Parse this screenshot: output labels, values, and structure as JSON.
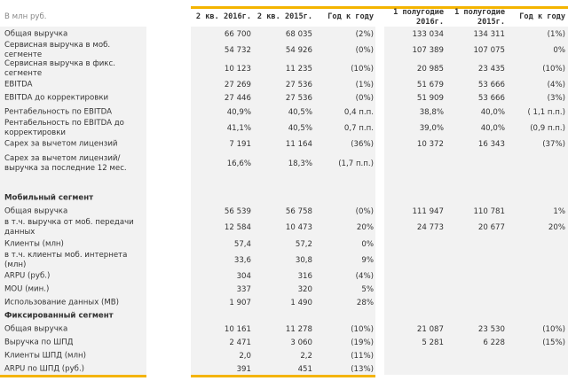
{
  "header": {
    "unit": "В млн руб.",
    "columns": [
      "2 кв. 2016г.",
      "2 кв. 2015г.",
      "Год к году",
      "1 полугодие 2016г.",
      "1 полугодие 2015г.",
      "Год к году"
    ]
  },
  "rows": [
    {
      "label": "Общая выручка",
      "values": [
        "66 700",
        "68 035",
        "(2%)",
        "133 034",
        "134 311",
        "(1%)"
      ]
    },
    {
      "label": "Сервисная выручка в моб. сегменте",
      "values": [
        "54 732",
        "54 926",
        "(0%)",
        "107 389",
        "107 075",
        "0%"
      ]
    },
    {
      "label": "Сервисная выручка в фикс. сегменте",
      "values": [
        "10 123",
        "11 235",
        "(10%)",
        "20 985",
        "23 435",
        "(10%)"
      ]
    },
    {
      "label": "EBITDA",
      "values": [
        "27 269",
        "27 536",
        "(1%)",
        "51 679",
        "53 666",
        "(4%)"
      ]
    },
    {
      "label": "EBITDA до корректировки",
      "values": [
        "27 446",
        "27 536",
        "(0%)",
        "51 909",
        "53 666",
        "(3%)"
      ]
    },
    {
      "label": "Рентабельность по EBITDA",
      "values": [
        "40,9%",
        "40,5%",
        "0,4 п.п.",
        "38,8%",
        "40,0%",
        "( 1,1 п.п.)"
      ]
    },
    {
      "label": "Рентабельность по EBITDA до корректировки",
      "values": [
        "41,1%",
        "40,5%",
        "0,7 п.п.",
        "39,0%",
        "40,0%",
        "(0,9 п.п.)"
      ]
    },
    {
      "label": "Capex за вычетом лицензий",
      "values": [
        "7 191",
        "11 164",
        "(36%)",
        "10 372",
        "16 343",
        "(37%)"
      ]
    },
    {
      "label": "Capex за вычетом лицензий/выручка за последние 12 мес.",
      "values": [
        "16,6%",
        "18,3%",
        "(1,7 п.п.)",
        "",
        "",
        ""
      ]
    },
    {
      "label": "Мобильный сегмент",
      "bold": true,
      "values": [
        "",
        "",
        "",
        "",
        "",
        ""
      ]
    },
    {
      "label": "Общая выручка",
      "values": [
        "56 539",
        "56 758",
        "(0%)",
        "111 947",
        "110 781",
        "1%"
      ]
    },
    {
      "label": "в т.ч. выручка от моб. передачи данных",
      "values": [
        "12 584",
        "10 473",
        "20%",
        "24 773",
        "20 677",
        "20%"
      ]
    },
    {
      "label": "Клиенты (млн)",
      "values": [
        "57,4",
        "57,2",
        "0%",
        "",
        "",
        ""
      ]
    },
    {
      "label": "в т.ч. клиенты моб. интернета (млн)",
      "values": [
        "33,6",
        "30,8",
        "9%",
        "",
        "",
        ""
      ]
    },
    {
      "label": "ARPU (руб.)",
      "values": [
        "304",
        "316",
        "(4%)",
        "",
        "",
        ""
      ]
    },
    {
      "label": "MOU (мин.)",
      "values": [
        "337",
        "320",
        "5%",
        "",
        "",
        ""
      ]
    },
    {
      "label": "Использование данных (MB)",
      "values": [
        "1 907",
        "1 490",
        "28%",
        "",
        "",
        ""
      ]
    },
    {
      "label": "Фиксированный сегмент",
      "bold": true,
      "values": [
        "",
        "",
        "",
        "",
        "",
        ""
      ]
    },
    {
      "label": "Общая выручка",
      "values": [
        "10 161",
        "11 278",
        "(10%)",
        "21 087",
        "23 530",
        "(10%)"
      ]
    },
    {
      "label": "Выручка по ШПД",
      "values": [
        "2 471",
        "3 060",
        "(19%)",
        "5 281",
        "6 228",
        "(15%)"
      ]
    },
    {
      "label": "Клиенты ШПД (млн)",
      "values": [
        "2,0",
        "2,2",
        "(11%)",
        "",
        "",
        ""
      ]
    },
    {
      "label": "ARPU по ШПД (руб.)",
      "values": [
        "391",
        "451",
        "(13%)",
        "",
        "",
        ""
      ]
    }
  ]
}
